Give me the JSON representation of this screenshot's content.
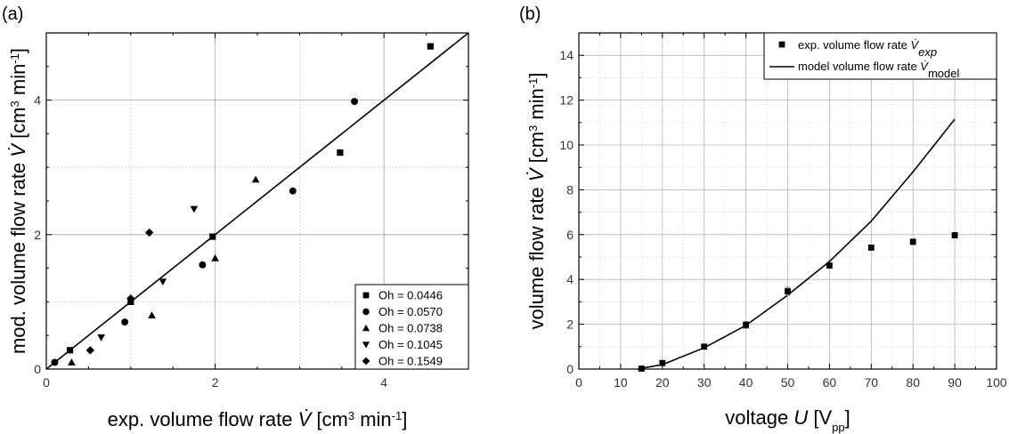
{
  "chart_data": [
    {
      "type": "scatter",
      "panel_label": "(a)",
      "xlabel": "exp. volume flow rate V̇ [cm³ min⁻¹]",
      "ylabel": "mod. volume flow rate V̇ [cm³ min⁻¹]",
      "xlim": [
        0,
        5
      ],
      "ylim": [
        0,
        5
      ],
      "xticks": [
        0,
        2,
        4
      ],
      "yticks": [
        0,
        2,
        4
      ],
      "grid": true,
      "legend_position": "bottom-right",
      "reference_line": {
        "x": [
          0,
          5
        ],
        "y": [
          0,
          5
        ]
      },
      "series": [
        {
          "name": "Oh = 0.0446",
          "marker": "square",
          "x": [
            0.28,
            1.0,
            1.97,
            3.48,
            4.55
          ],
          "y": [
            0.28,
            1.0,
            1.97,
            3.22,
            4.8
          ]
        },
        {
          "name": "Oh = 0.0570",
          "marker": "circle",
          "x": [
            0.1,
            0.93,
            1.85,
            2.92,
            3.65
          ],
          "y": [
            0.1,
            0.7,
            1.55,
            2.65,
            3.98
          ]
        },
        {
          "name": "Oh = 0.0738",
          "marker": "triangle-up",
          "x": [
            0.3,
            1.25,
            2.0,
            2.48
          ],
          "y": [
            0.1,
            0.8,
            1.65,
            2.82
          ]
        },
        {
          "name": "Oh = 0.1045",
          "marker": "triangle-down",
          "x": [
            0.65,
            1.38,
            1.75
          ],
          "y": [
            0.47,
            1.3,
            2.38
          ]
        },
        {
          "name": "Oh = 0.1549",
          "marker": "diamond",
          "x": [
            0.52,
            1.0,
            1.22
          ],
          "y": [
            0.28,
            1.05,
            2.03
          ]
        }
      ]
    },
    {
      "type": "line",
      "panel_label": "(b)",
      "xlabel": "voltage U [Vpp]",
      "ylabel": "volume flow rate V̇ [cm³ min⁻¹]",
      "xlim": [
        0,
        100
      ],
      "ylim": [
        0,
        15
      ],
      "xticks": [
        0,
        10,
        20,
        30,
        40,
        50,
        60,
        70,
        80,
        90,
        100
      ],
      "yticks": [
        0,
        2,
        4,
        6,
        8,
        10,
        12,
        14
      ],
      "grid": true,
      "legend_position": "top-right",
      "series": [
        {
          "name": "exp. volume flow rate V̇exp",
          "marker": "square",
          "x": [
            15,
            20,
            30,
            40,
            50,
            60,
            70,
            80,
            90
          ],
          "y": [
            0.02,
            0.27,
            1.0,
            1.97,
            3.47,
            4.62,
            5.42,
            5.68,
            5.97
          ],
          "error": [
            0.02,
            0.03,
            0.05,
            0.15,
            0.18,
            0.08,
            0.08,
            0.12,
            0.12
          ]
        },
        {
          "name": "model volume flow rate V̇model",
          "marker": "line",
          "x": [
            14,
            20,
            30,
            40,
            50,
            60,
            70,
            80,
            90
          ],
          "y": [
            0.0,
            0.2,
            0.95,
            1.95,
            3.3,
            4.8,
            6.6,
            8.8,
            11.15
          ]
        }
      ]
    }
  ]
}
